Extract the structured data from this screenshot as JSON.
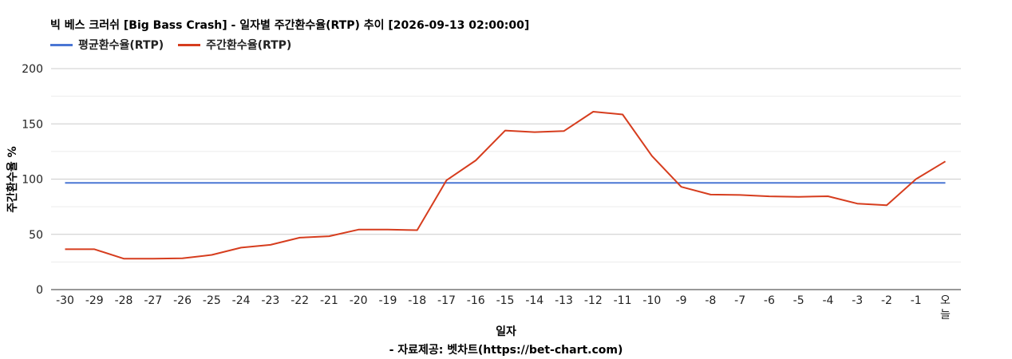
{
  "chart_data": {
    "type": "line",
    "title": "빅 베스 크러쉬 [Big Bass Crash] - 일자별 주간환수율(RTP) 추이 [2026-09-13 02:00:00]",
    "xlabel": "일자",
    "ylabel": "주간환수율 %",
    "ylim": [
      0,
      200
    ],
    "yticks": [
      0,
      50,
      100,
      150,
      200
    ],
    "grid": true,
    "legend_position": "top-left",
    "categories": [
      "-30",
      "-29",
      "-28",
      "-27",
      "-26",
      "-25",
      "-24",
      "-23",
      "-22",
      "-21",
      "-20",
      "-19",
      "-18",
      "-17",
      "-16",
      "-15",
      "-14",
      "-13",
      "-12",
      "-11",
      "-10",
      "-9",
      "-8",
      "-7",
      "-6",
      "-5",
      "-4",
      "-3",
      "-2",
      "-1",
      "오늘"
    ],
    "series": [
      {
        "name": "평균환수율(RTP)",
        "color": "#4a76d4",
        "values": [
          96.5,
          96.5,
          96.5,
          96.5,
          96.5,
          96.5,
          96.5,
          96.5,
          96.5,
          96.5,
          96.5,
          96.5,
          96.5,
          96.5,
          96.5,
          96.5,
          96.5,
          96.5,
          96.5,
          96.5,
          96.5,
          96.5,
          96.5,
          96.5,
          96.5,
          96.5,
          96.5,
          96.5,
          96.5,
          96.5,
          96.5
        ]
      },
      {
        "name": "주간환수율(RTP)",
        "color": "#d63d1e",
        "values": [
          36.5,
          36.5,
          28,
          28,
          28.3,
          31.4,
          38,
          40.5,
          47,
          48.3,
          54.3,
          54.3,
          53.8,
          99,
          117,
          144,
          142.5,
          143.5,
          161,
          158.5,
          121,
          93,
          86,
          85.6,
          84.4,
          84,
          84.5,
          77.8,
          76.3,
          100,
          116
        ]
      }
    ],
    "source": "- 자료제공: 벳차트(https://bet-chart.com)"
  }
}
